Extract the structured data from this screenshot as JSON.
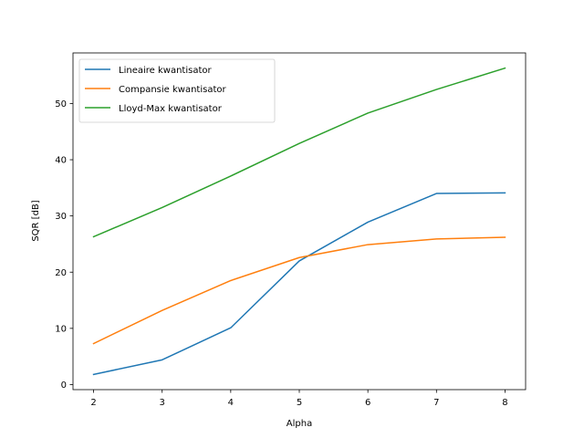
{
  "chart_data": {
    "type": "line",
    "x": [
      2,
      3,
      4,
      5,
      6,
      7,
      8
    ],
    "series": [
      {
        "name": "Lineaire kwantisator",
        "color": "#1f77b4",
        "values": [
          1.8,
          4.4,
          10.1,
          22.0,
          28.9,
          34.0,
          34.1
        ]
      },
      {
        "name": "Compansie kwantisator",
        "color": "#ff7f0e",
        "values": [
          7.3,
          13.2,
          18.5,
          22.6,
          24.9,
          25.9,
          26.2
        ]
      },
      {
        "name": "Lloyd-Max kwantisator",
        "color": "#2ca02c",
        "values": [
          26.3,
          31.5,
          37.1,
          42.9,
          48.3,
          52.5,
          56.3
        ]
      }
    ],
    "xlabel": "Alpha",
    "ylabel": "SQR [dB]",
    "xlim": [
      1.7,
      8.3
    ],
    "ylim": [
      -0.9,
      59.0
    ],
    "xticks": [
      2,
      3,
      4,
      5,
      6,
      7,
      8
    ],
    "yticks": [
      0,
      10,
      20,
      30,
      40,
      50
    ],
    "grid": false,
    "legend": "top-left"
  }
}
